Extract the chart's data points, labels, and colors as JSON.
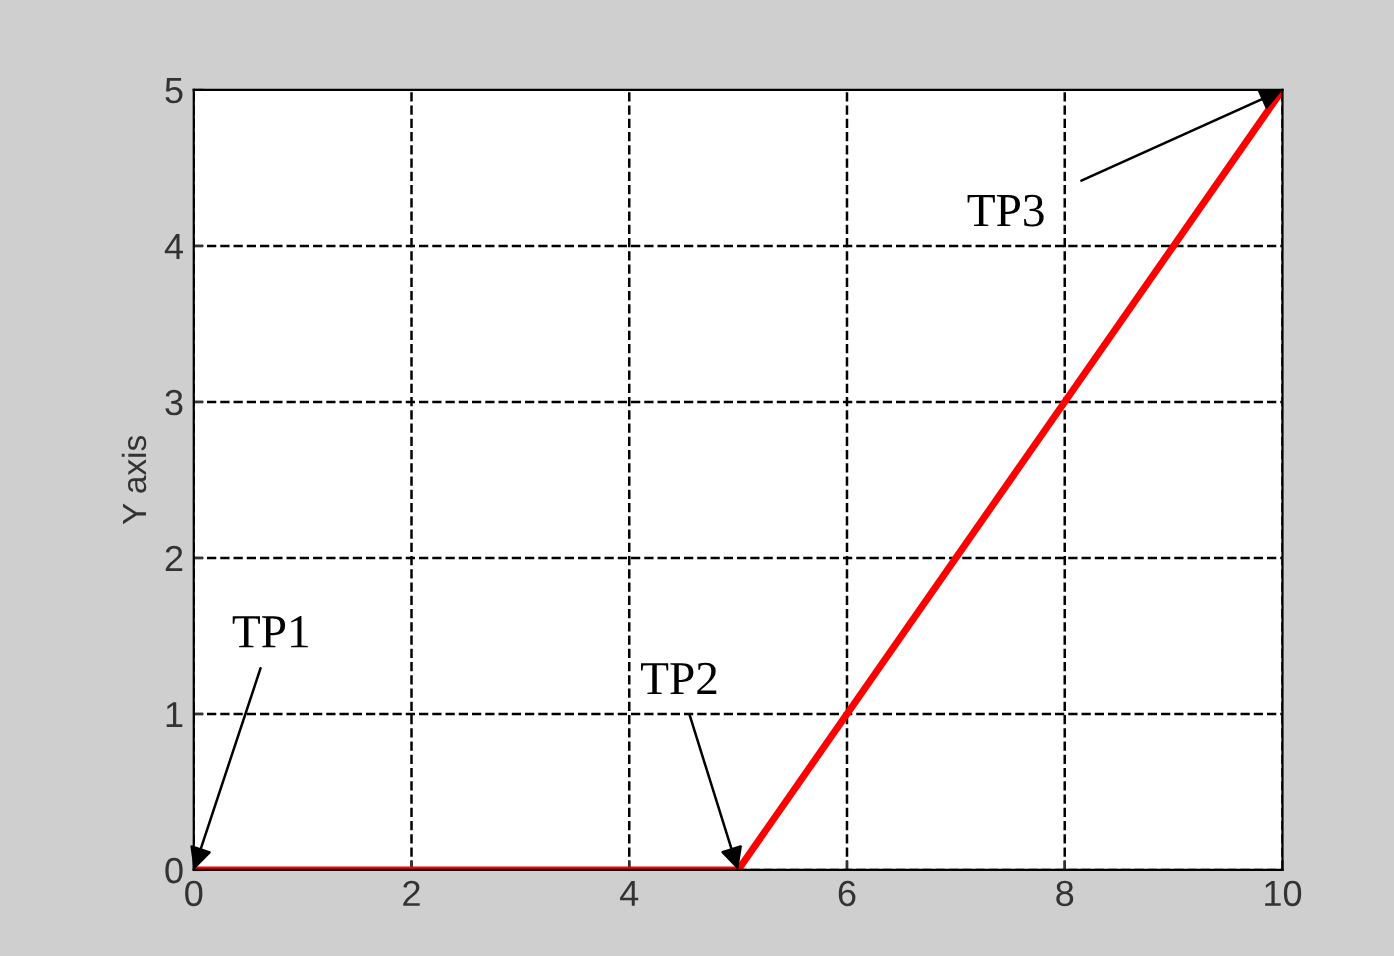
{
  "chart_data": {
    "type": "line",
    "ylabel": "Y axis",
    "x": [
      0,
      5,
      10
    ],
    "series": [
      {
        "color": "#ff0000",
        "values": [
          0,
          0,
          5
        ]
      }
    ],
    "xlim": [
      0,
      10
    ],
    "xticks": [
      0,
      2,
      4,
      6,
      8,
      10
    ],
    "ylim": [
      0,
      5
    ],
    "yticks": [
      0,
      1,
      2,
      3,
      4,
      5
    ],
    "grid": true,
    "line_style": "solid",
    "marker": "none",
    "annotations": [
      {
        "text": "TP1",
        "x": 0,
        "y": 0
      },
      {
        "text": "TP2",
        "x": 5,
        "y": 0
      },
      {
        "text": "TP3",
        "x": 10,
        "y": 5
      }
    ]
  }
}
